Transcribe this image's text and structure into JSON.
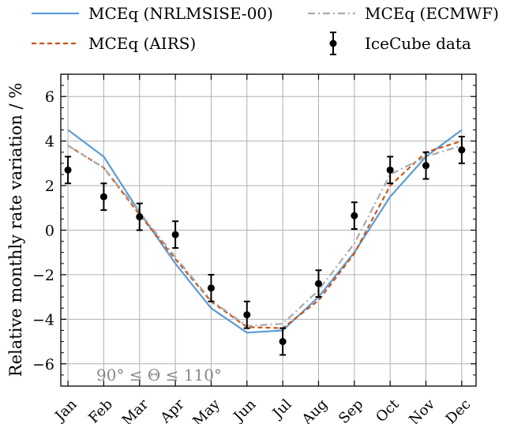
{
  "chart_data": {
    "type": "line",
    "title": "",
    "xlabel": "",
    "ylabel": "Relative monthly rate variation / %",
    "annotation": "90° ≤ Θ ≤ 110°",
    "categories": [
      "Jan",
      "Feb",
      "Mar",
      "Apr",
      "May",
      "Jun",
      "Jul",
      "Aug",
      "Sep",
      "Oct",
      "Nov",
      "Dec"
    ],
    "ylim": [
      -7,
      7
    ],
    "yticks": [
      -6,
      -4,
      -2,
      0,
      2,
      4,
      6
    ],
    "ytick_labels": [
      "−6",
      "−4",
      "−2",
      "0",
      "2",
      "4",
      "6"
    ],
    "grid": true,
    "legend_position": "top, above plot, two columns",
    "series": [
      {
        "name": "MCEq (NRLMSISE-00)",
        "style": "solid",
        "color": "#5b9bd5",
        "values": [
          4.5,
          3.3,
          0.8,
          -1.5,
          -3.5,
          -4.6,
          -4.5,
          -3.0,
          -1.0,
          1.5,
          3.3,
          4.5
        ]
      },
      {
        "name": "MCEq (AIRS)",
        "style": "dashed",
        "color": "#c8561a",
        "values": [
          3.8,
          2.8,
          0.7,
          -1.3,
          -3.2,
          -4.35,
          -4.4,
          -3.15,
          -1.05,
          2.0,
          3.5,
          4.0
        ]
      },
      {
        "name": "MCEq (ECMWF)",
        "style": "dashdot",
        "color": "#aaaaaa",
        "values": [
          3.8,
          2.8,
          0.8,
          -1.2,
          -3.15,
          -4.3,
          -4.2,
          -2.7,
          -0.6,
          2.5,
          3.3,
          3.8
        ]
      },
      {
        "name": "IceCube data",
        "style": "errorbar",
        "color": "#000000",
        "values": [
          2.7,
          1.5,
          0.6,
          -0.2,
          -2.6,
          -3.8,
          -5.0,
          -2.4,
          0.65,
          2.7,
          2.9,
          3.6
        ],
        "errors": [
          0.6,
          0.6,
          0.6,
          0.6,
          0.6,
          0.6,
          0.6,
          0.6,
          0.6,
          0.6,
          0.6,
          0.6
        ]
      }
    ]
  }
}
